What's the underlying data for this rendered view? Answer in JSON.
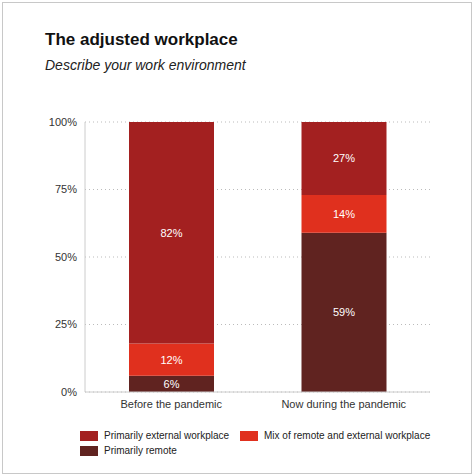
{
  "chart_data": {
    "type": "bar",
    "title": "The adjusted workplace",
    "subtitle": "Describe your work environment",
    "categories": [
      "Before the pandemic",
      "Now during the pandemic"
    ],
    "series": [
      {
        "name": "Primarily external workplace",
        "color": "#a32020",
        "values": [
          82,
          27
        ],
        "value_labels": [
          "82%",
          "27%"
        ]
      },
      {
        "name": "Mix of remote and external workplace",
        "color": "#e0301e",
        "values": [
          12,
          14
        ],
        "value_labels": [
          "12%",
          "14%"
        ]
      },
      {
        "name": "Primarily remote",
        "color": "#602320",
        "values": [
          6,
          59
        ],
        "value_labels": [
          "6%",
          "59%"
        ]
      }
    ],
    "ylim": [
      0,
      100
    ],
    "yticks": [
      {
        "value": 0,
        "label": "0%"
      },
      {
        "value": 25,
        "label": "25%"
      },
      {
        "value": 50,
        "label": "50%"
      },
      {
        "value": 75,
        "label": "75%"
      },
      {
        "value": 100,
        "label": "100%"
      }
    ],
    "grid": true,
    "stacked": true,
    "data_labels": true,
    "legend": "bottom"
  }
}
